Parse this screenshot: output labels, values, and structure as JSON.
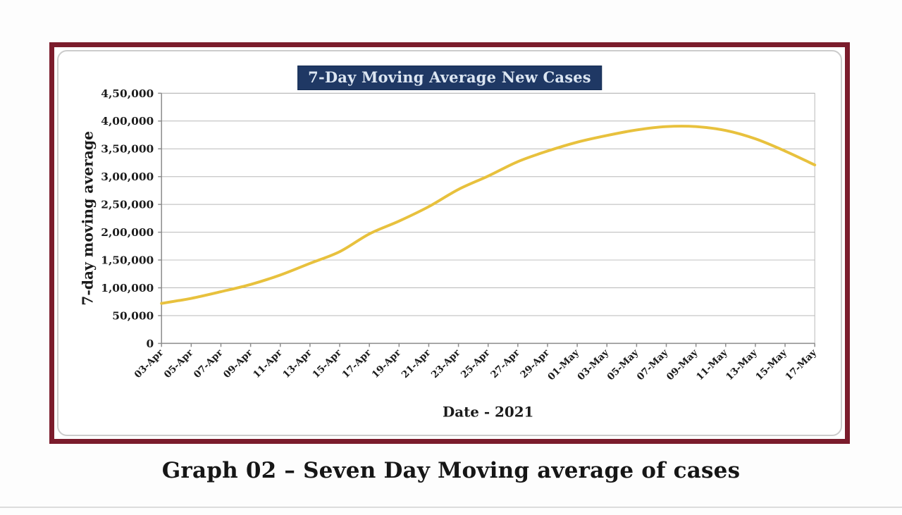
{
  "page": {
    "caption": "Graph 02 – Seven Day Moving average of cases"
  },
  "colors": {
    "frame_border": "#7b1c2c",
    "title_background": "#1f3864",
    "title_text": "#dce6f2",
    "line": "#e8c13d",
    "gridline": "#b8b8b8",
    "axis": "#8c8c8c",
    "label_text": "#1b1b1b"
  },
  "chart_data": {
    "type": "line",
    "title": "7-Day Moving Average New Cases",
    "xlabel": "Date - 2021",
    "ylabel": "7-day moving average",
    "categories": [
      "03-Apr",
      "05-Apr",
      "07-Apr",
      "09-Apr",
      "11-Apr",
      "13-Apr",
      "15-Apr",
      "17-Apr",
      "19-Apr",
      "21-Apr",
      "23-Apr",
      "25-Apr",
      "27-Apr",
      "29-Apr",
      "01-May",
      "03-May",
      "05-May",
      "07-May",
      "09-May",
      "11-May",
      "13-May",
      "15-May",
      "17-May"
    ],
    "series": [
      {
        "name": "7-day moving average new cases",
        "values": [
          72000,
          81000,
          93000,
          106000,
          123000,
          144000,
          165000,
          197000,
          220000,
          246000,
          277000,
          301000,
          327000,
          346000,
          362000,
          374000,
          384000,
          390000,
          390000,
          383000,
          368000,
          346000,
          321000
        ]
      }
    ],
    "ylim": [
      0,
      450000
    ],
    "ytick_step": 50000,
    "ytick_labels": [
      "0",
      "50,000",
      "1,00,000",
      "1,50,000",
      "2,00,000",
      "2,50,000",
      "3,00,000",
      "3,50,000",
      "4,00,000",
      "4,50,000"
    ],
    "grid": true,
    "legend": false
  }
}
